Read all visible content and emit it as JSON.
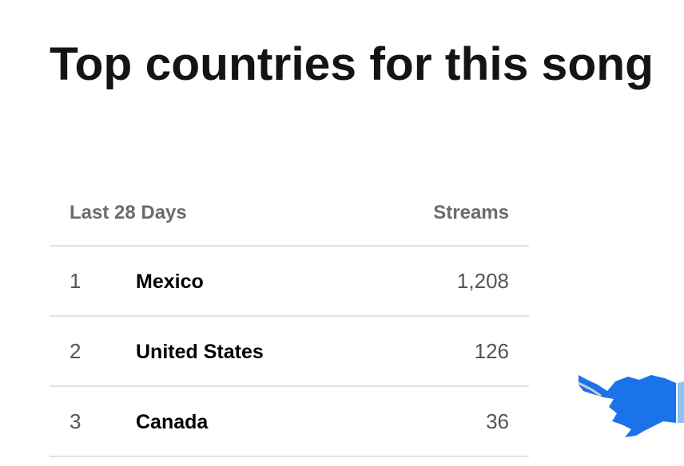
{
  "header": {
    "title": "Top countries for this song"
  },
  "table": {
    "columns": [
      "Last 28 Days",
      "Streams"
    ],
    "rows": [
      [
        "1",
        "Mexico",
        "1,208"
      ],
      [
        "2",
        "United States",
        "126"
      ],
      [
        "3",
        "Canada",
        "36"
      ]
    ]
  }
}
